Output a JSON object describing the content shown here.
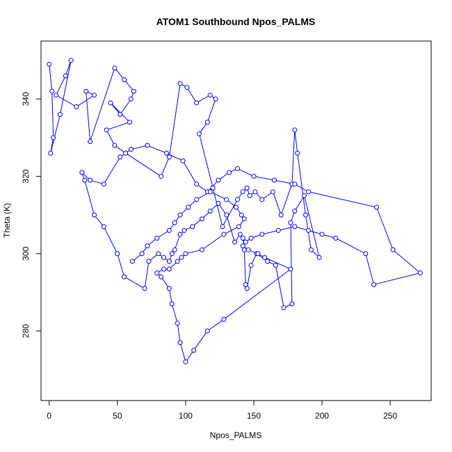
{
  "chart_data": {
    "type": "line",
    "title": "ATOM1 Southbound Npos_PALMS",
    "xlabel": "Npos_PALMS",
    "ylabel": "Theta (K)",
    "xlim": [
      -6,
      280
    ],
    "ylim": [
      262,
      355
    ],
    "xticks": [
      0,
      50,
      100,
      150,
      200,
      250
    ],
    "yticks": [
      280,
      300,
      320,
      340
    ],
    "series_color": "#0000ff",
    "grid": false,
    "legend": "none",
    "series": [
      {
        "x": [
          0,
          2,
          3,
          1,
          8,
          16,
          12,
          5,
          20,
          33,
          27,
          30,
          48,
          55,
          62,
          60,
          52,
          45,
          59,
          42,
          48,
          56,
          82,
          88,
          96,
          101,
          108,
          118,
          122,
          116,
          110,
          120,
          127,
          138,
          142,
          145,
          147,
          151,
          156,
          164,
          170,
          178,
          180,
          182,
          188,
          192,
          198,
          187,
          180,
          177,
          178,
          172,
          166,
          160,
          152,
          148,
          145,
          144,
          143,
          142,
          140,
          136,
          130,
          124,
          118,
          112,
          105,
          99,
          96,
          92,
          90,
          88,
          84,
          80,
          73,
          70,
          55,
          50,
          40,
          33,
          26,
          24,
          30,
          40,
          52,
          60,
          72,
          86,
          98,
          108,
          116,
          124,
          132,
          138,
          150,
          165,
          180,
          190,
          240,
          252,
          272,
          238,
          232,
          210,
          200,
          190,
          180,
          168,
          156,
          148,
          144,
          142,
          146,
          153,
          158,
          177,
          128,
          116,
          106,
          100,
          96,
          94,
          90,
          88,
          82,
          79,
          84,
          88,
          94,
          97,
          100,
          112,
          128,
          139,
          143,
          141,
          137,
          130,
          118,
          108,
          102,
          96,
          92,
          88,
          79,
          72,
          68,
          61
        ],
        "y": [
          349,
          342,
          330,
          326,
          336,
          350,
          346,
          341,
          338,
          341,
          342,
          329,
          348,
          345,
          342,
          340,
          336,
          339,
          334,
          332,
          328,
          326,
          320,
          325,
          344,
          343,
          339,
          341,
          340,
          334,
          331,
          317,
          307,
          314,
          316,
          317,
          315,
          316,
          314,
          316,
          310,
          318,
          332,
          326,
          310,
          301,
          299,
          315,
          311,
          308,
          287,
          286,
          297,
          298,
          300,
          297,
          291,
          292,
          301,
          304,
          305,
          303,
          310,
          313,
          311,
          309,
          307,
          306,
          305,
          301,
          300,
          298,
          299,
          300,
          298,
          291,
          294,
          300,
          307,
          310,
          319,
          321,
          319,
          318,
          325,
          327,
          328,
          326,
          324,
          318,
          316,
          319,
          321,
          322,
          320,
          319,
          318,
          316,
          312,
          301,
          295,
          292,
          300,
          304,
          305,
          306,
          307,
          306,
          305,
          304,
          303,
          302,
          301,
          300,
          299,
          296,
          283,
          280,
          275,
          272,
          277,
          282,
          287,
          291,
          294,
          295,
          296,
          296,
          298,
          299,
          300,
          301,
          305,
          307,
          309,
          310,
          312,
          314,
          316,
          314,
          312,
          310,
          308,
          306,
          304,
          302,
          300,
          298
        ]
      }
    ]
  }
}
